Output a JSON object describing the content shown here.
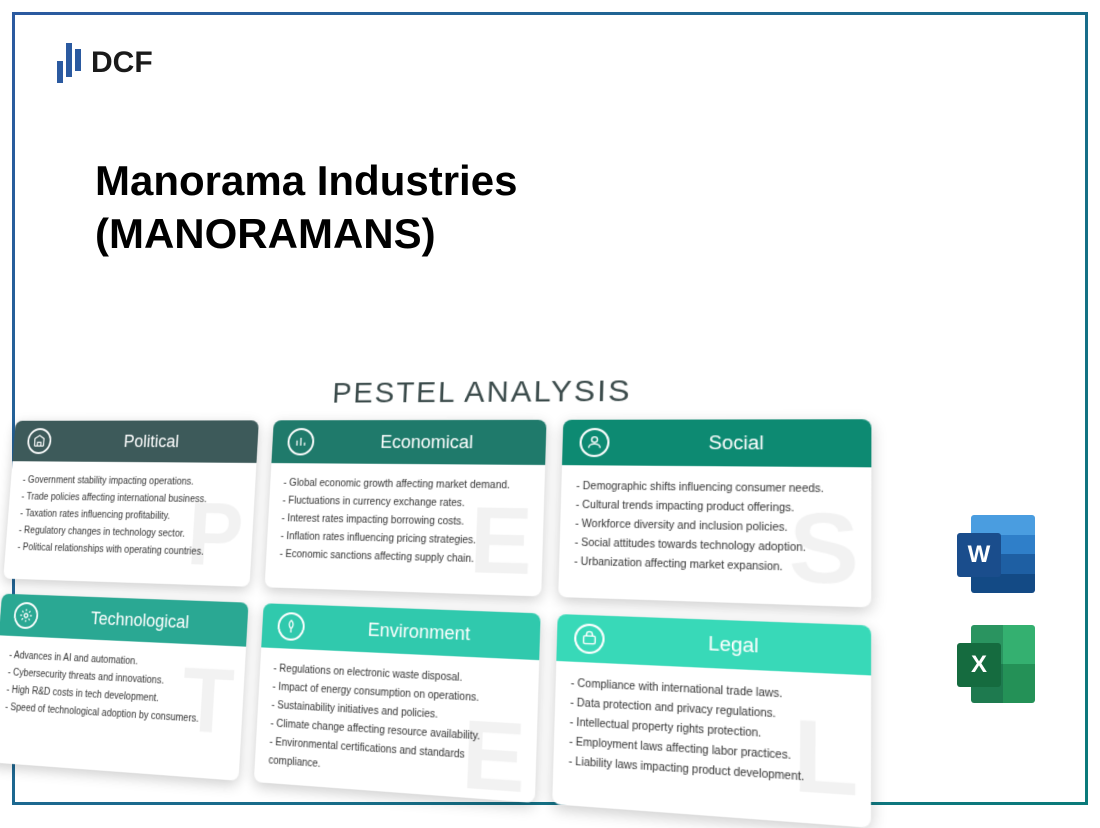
{
  "logo": {
    "text": "DCF"
  },
  "title": {
    "line1": "Manorama Industries",
    "line2": "(MANORAMANS)"
  },
  "diagram": {
    "type": "infographic",
    "title": "PESTEL ANALYSIS",
    "title_color": "#3a4a4a",
    "title_fontsize": 30,
    "card_shadow": "0 4px 14px rgba(0,0,0,0.2)",
    "body_fontsize": 10,
    "watermark_color": "rgba(0,0,0,0.05)",
    "cards": [
      {
        "title": "Political",
        "header_color": "#3d5a5a",
        "letter": "P",
        "items": [
          "- Government stability impacting operations.",
          "- Trade policies affecting international business.",
          "- Taxation rates influencing profitability.",
          "- Regulatory changes in technology sector.",
          "- Political relationships with operating countries."
        ]
      },
      {
        "title": "Economical",
        "header_color": "#1f7a6b",
        "letter": "E",
        "items": [
          "- Global economic growth affecting market demand.",
          "- Fluctuations in currency exchange rates.",
          "- Interest rates impacting borrowing costs.",
          "- Inflation rates influencing pricing strategies.",
          "- Economic sanctions affecting supply chain."
        ]
      },
      {
        "title": "Social",
        "header_color": "#0d8a72",
        "letter": "S",
        "items": [
          "- Demographic shifts influencing consumer needs.",
          "- Cultural trends impacting product offerings.",
          "- Workforce diversity and inclusion policies.",
          "- Social attitudes towards technology adoption.",
          "- Urbanization affecting market expansion."
        ]
      },
      {
        "title": "Technological",
        "header_color": "#2aa893",
        "letter": "T",
        "items": [
          "- Advances in AI and automation.",
          "- Cybersecurity threats and innovations.",
          "- High R&D costs in tech development.",
          "- Speed of technological adoption by consumers."
        ]
      },
      {
        "title": "Environment",
        "header_color": "#30c9ad",
        "letter": "E",
        "items": [
          "- Regulations on electronic waste disposal.",
          "- Impact of energy consumption on operations.",
          "- Sustainability initiatives and policies.",
          "- Climate change affecting resource availability.",
          "- Environmental certifications and standards compliance."
        ]
      },
      {
        "title": "Legal",
        "header_color": "#38d9b8",
        "letter": "L",
        "items": [
          "- Compliance with international trade laws.",
          "- Data protection and privacy regulations.",
          "- Intellectual property rights protection.",
          "- Employment laws affecting labor practices.",
          "- Liability laws impacting product development."
        ]
      }
    ]
  },
  "file_icons": {
    "word": "W",
    "excel": "X",
    "word_colors": [
      "#4a9de0",
      "#2f7fc9",
      "#1e5fa3",
      "#134a85",
      "#1a4d8c"
    ],
    "excel_colors": [
      "#2a9460",
      "#34b070",
      "#1e7a4f",
      "#249157",
      "#156b3f"
    ]
  }
}
